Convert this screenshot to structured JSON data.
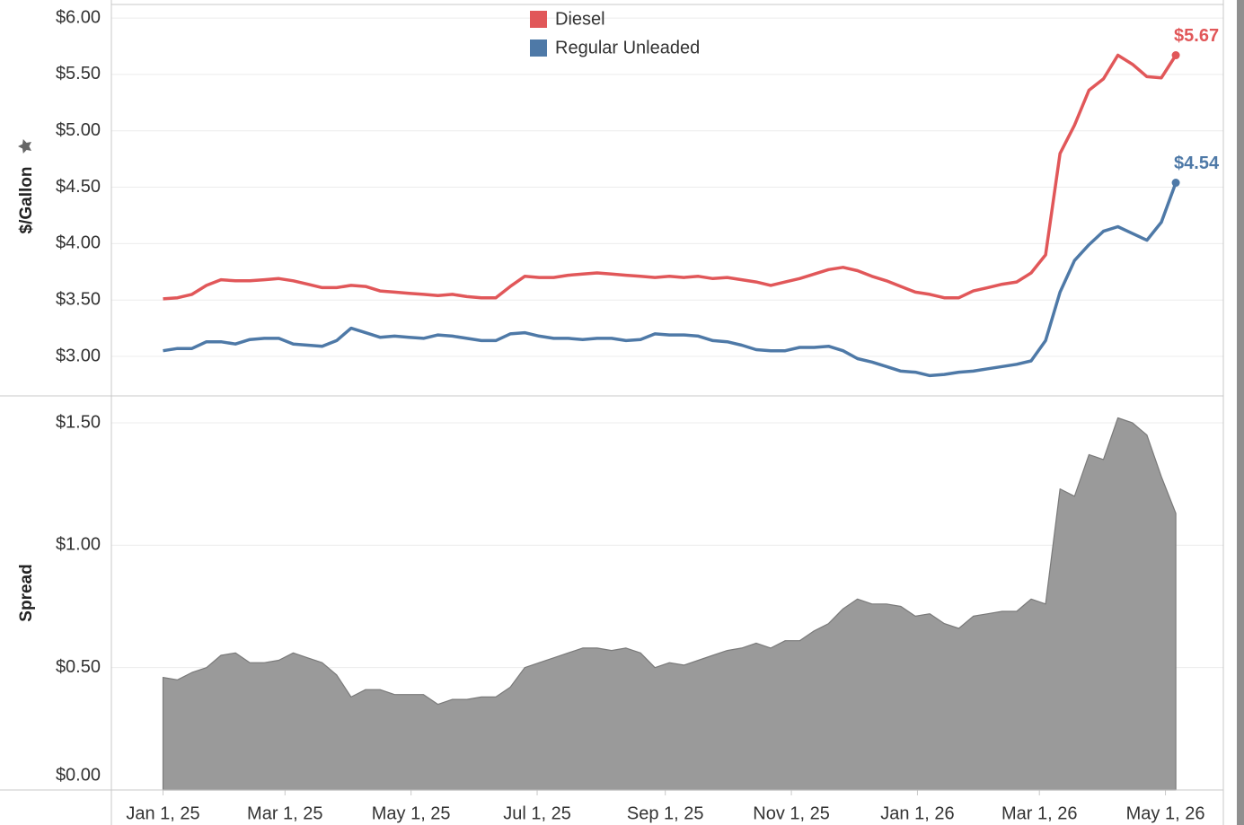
{
  "chart_data": [
    {
      "type": "line",
      "ylabel": "$/Gallon",
      "legend": "top",
      "x": [
        "2025-01-01",
        "2025-01-08",
        "2025-01-15",
        "2025-01-22",
        "2025-01-29",
        "2025-02-05",
        "2025-02-12",
        "2025-02-19",
        "2025-02-26",
        "2025-03-05",
        "2025-03-12",
        "2025-03-19",
        "2025-03-26",
        "2025-04-02",
        "2025-04-09",
        "2025-04-16",
        "2025-04-23",
        "2025-04-30",
        "2025-05-07",
        "2025-05-14",
        "2025-05-21",
        "2025-05-28",
        "2025-06-04",
        "2025-06-11",
        "2025-06-18",
        "2025-06-25",
        "2025-07-02",
        "2025-07-09",
        "2025-07-16",
        "2025-07-23",
        "2025-07-30",
        "2025-08-06",
        "2025-08-13",
        "2025-08-20",
        "2025-08-27",
        "2025-09-03",
        "2025-09-10",
        "2025-09-17",
        "2025-09-24",
        "2025-10-01",
        "2025-10-08",
        "2025-10-15",
        "2025-10-22",
        "2025-10-29",
        "2025-11-05",
        "2025-11-12",
        "2025-11-19",
        "2025-11-26",
        "2025-12-03",
        "2025-12-10",
        "2025-12-17",
        "2025-12-24",
        "2025-12-31",
        "2026-01-07",
        "2026-01-14",
        "2026-01-21",
        "2026-01-28",
        "2026-02-04",
        "2026-02-11",
        "2026-02-18",
        "2026-02-25",
        "2026-03-04",
        "2026-03-11",
        "2026-03-18",
        "2026-03-25",
        "2026-04-01",
        "2026-04-08",
        "2026-04-15",
        "2026-04-22",
        "2026-04-29",
        "2026-05-06"
      ],
      "xlim": [
        "2024-12-07",
        "2026-05-29"
      ],
      "ylim": [
        2.65,
        6.12
      ],
      "yticks": [
        {
          "value": 3,
          "label": "$3.00"
        },
        {
          "value": 3.5,
          "label": "$3.50"
        },
        {
          "value": 4,
          "label": "$4.00"
        },
        {
          "value": 4.5,
          "label": "$4.50"
        },
        {
          "value": 5,
          "label": "$5.00"
        },
        {
          "value": 5.5,
          "label": "$5.50"
        },
        {
          "value": 6,
          "label": "$6.00"
        }
      ],
      "grid": true,
      "series": [
        {
          "name": "Diesel",
          "color": "#e15759",
          "values": [
            3.51,
            3.52,
            3.55,
            3.63,
            3.68,
            3.67,
            3.67,
            3.68,
            3.69,
            3.67,
            3.64,
            3.61,
            3.61,
            3.63,
            3.62,
            3.58,
            3.57,
            3.56,
            3.55,
            3.54,
            3.55,
            3.53,
            3.52,
            3.52,
            3.62,
            3.71,
            3.7,
            3.7,
            3.72,
            3.73,
            3.74,
            3.73,
            3.72,
            3.71,
            3.7,
            3.71,
            3.7,
            3.71,
            3.69,
            3.7,
            3.68,
            3.66,
            3.63,
            3.66,
            3.69,
            3.73,
            3.77,
            3.79,
            3.76,
            3.71,
            3.67,
            3.62,
            3.57,
            3.55,
            3.52,
            3.52,
            3.58,
            3.61,
            3.64,
            3.66,
            3.74,
            3.9,
            4.8,
            5.05,
            5.36,
            5.46,
            5.67,
            5.59,
            5.48,
            5.47,
            5.67
          ],
          "value_labels": [
            null,
            null,
            null,
            null,
            null,
            null,
            null,
            null,
            null,
            null,
            null,
            null,
            null,
            null,
            null,
            null,
            null,
            null,
            null,
            null,
            null,
            null,
            null,
            null,
            null,
            null,
            null,
            null,
            null,
            null,
            null,
            null,
            null,
            null,
            null,
            null,
            null,
            null,
            null,
            null,
            null,
            null,
            null,
            null,
            null,
            null,
            null,
            null,
            null,
            null,
            null,
            null,
            null,
            null,
            null,
            null,
            null,
            null,
            null,
            null,
            null,
            null,
            null,
            null,
            null,
            null,
            null,
            null,
            null,
            null,
            "$5.67"
          ]
        },
        {
          "name": "Regular Unleaded",
          "color": "#4e79a7",
          "values": [
            3.05,
            3.07,
            3.07,
            3.13,
            3.13,
            3.11,
            3.15,
            3.16,
            3.16,
            3.11,
            3.1,
            3.09,
            3.14,
            3.25,
            3.21,
            3.17,
            3.18,
            3.17,
            3.16,
            3.19,
            3.18,
            3.16,
            3.14,
            3.14,
            3.2,
            3.21,
            3.18,
            3.16,
            3.16,
            3.15,
            3.16,
            3.16,
            3.14,
            3.15,
            3.2,
            3.19,
            3.19,
            3.18,
            3.14,
            3.13,
            3.1,
            3.06,
            3.05,
            3.05,
            3.08,
            3.08,
            3.09,
            3.05,
            2.98,
            2.95,
            2.91,
            2.87,
            2.86,
            2.83,
            2.84,
            2.86,
            2.87,
            2.89,
            2.91,
            2.93,
            2.96,
            3.14,
            3.57,
            3.85,
            3.99,
            4.11,
            4.15,
            4.09,
            4.03,
            4.19,
            4.54
          ],
          "value_labels": [
            null,
            null,
            null,
            null,
            null,
            null,
            null,
            null,
            null,
            null,
            null,
            null,
            null,
            null,
            null,
            null,
            null,
            null,
            null,
            null,
            null,
            null,
            null,
            null,
            null,
            null,
            null,
            null,
            null,
            null,
            null,
            null,
            null,
            null,
            null,
            null,
            null,
            null,
            null,
            null,
            null,
            null,
            null,
            null,
            null,
            null,
            null,
            null,
            null,
            null,
            null,
            null,
            null,
            null,
            null,
            null,
            null,
            null,
            null,
            null,
            null,
            null,
            null,
            null,
            null,
            null,
            null,
            null,
            null,
            null,
            "$4.54"
          ]
        }
      ]
    },
    {
      "type": "area",
      "ylabel": "Spread",
      "x": [
        "2025-01-01",
        "2025-01-08",
        "2025-01-15",
        "2025-01-22",
        "2025-01-29",
        "2025-02-05",
        "2025-02-12",
        "2025-02-19",
        "2025-02-26",
        "2025-03-05",
        "2025-03-12",
        "2025-03-19",
        "2025-03-26",
        "2025-04-02",
        "2025-04-09",
        "2025-04-16",
        "2025-04-23",
        "2025-04-30",
        "2025-05-07",
        "2025-05-14",
        "2025-05-21",
        "2025-05-28",
        "2025-06-04",
        "2025-06-11",
        "2025-06-18",
        "2025-06-25",
        "2025-07-02",
        "2025-07-09",
        "2025-07-16",
        "2025-07-23",
        "2025-07-30",
        "2025-08-06",
        "2025-08-13",
        "2025-08-20",
        "2025-08-27",
        "2025-09-03",
        "2025-09-10",
        "2025-09-17",
        "2025-09-24",
        "2025-10-01",
        "2025-10-08",
        "2025-10-15",
        "2025-10-22",
        "2025-10-29",
        "2025-11-05",
        "2025-11-12",
        "2025-11-19",
        "2025-11-26",
        "2025-12-03",
        "2025-12-10",
        "2025-12-17",
        "2025-12-24",
        "2025-12-31",
        "2026-01-07",
        "2026-01-14",
        "2026-01-21",
        "2026-01-28",
        "2026-02-04",
        "2026-02-11",
        "2026-02-18",
        "2026-02-25",
        "2026-03-04",
        "2026-03-11",
        "2026-03-18",
        "2026-03-25",
        "2026-04-01",
        "2026-04-08",
        "2026-04-15",
        "2026-04-22",
        "2026-04-29",
        "2026-05-06"
      ],
      "xlim": [
        "2024-12-07",
        "2026-05-29"
      ],
      "xticks": [
        {
          "value": "2025-01-01",
          "label": "Jan 1, 25"
        },
        {
          "value": "2025-03-01",
          "label": "Mar 1, 25"
        },
        {
          "value": "2025-05-01",
          "label": "May 1, 25"
        },
        {
          "value": "2025-07-01",
          "label": "Jul 1, 25"
        },
        {
          "value": "2025-09-01",
          "label": "Sep 1, 25"
        },
        {
          "value": "2025-11-01",
          "label": "Nov 1, 25"
        },
        {
          "value": "2026-01-01",
          "label": "Jan 1, 26"
        },
        {
          "value": "2026-03-01",
          "label": "Mar 1, 26"
        },
        {
          "value": "2026-05-01",
          "label": "May 1, 26"
        }
      ],
      "ylim": [
        0,
        1.61
      ],
      "yticks": [
        {
          "value": 0,
          "label": "$0.00"
        },
        {
          "value": 0.5,
          "label": "$0.50"
        },
        {
          "value": 1,
          "label": "$1.00"
        },
        {
          "value": 1.5,
          "label": "$1.50"
        }
      ],
      "grid": true,
      "color": "#9a9a9a",
      "values": [
        0.46,
        0.45,
        0.48,
        0.5,
        0.55,
        0.56,
        0.52,
        0.52,
        0.53,
        0.56,
        0.54,
        0.52,
        0.47,
        0.38,
        0.41,
        0.41,
        0.39,
        0.39,
        0.39,
        0.35,
        0.37,
        0.37,
        0.38,
        0.38,
        0.42,
        0.5,
        0.52,
        0.54,
        0.56,
        0.58,
        0.58,
        0.57,
        0.58,
        0.56,
        0.5,
        0.52,
        0.51,
        0.53,
        0.55,
        0.57,
        0.58,
        0.6,
        0.58,
        0.61,
        0.61,
        0.65,
        0.68,
        0.74,
        0.78,
        0.76,
        0.76,
        0.75,
        0.71,
        0.72,
        0.68,
        0.66,
        0.71,
        0.72,
        0.73,
        0.73,
        0.78,
        0.76,
        1.23,
        1.2,
        1.37,
        1.35,
        1.52,
        1.5,
        1.45,
        1.28,
        1.13
      ]
    }
  ]
}
